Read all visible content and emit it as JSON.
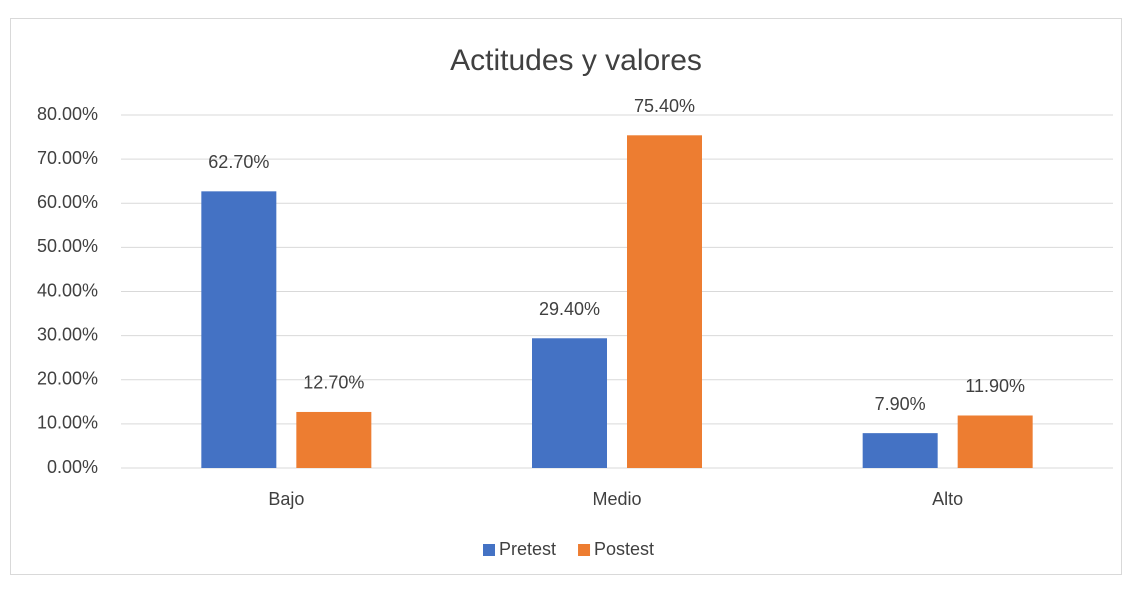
{
  "chart_data": {
    "type": "bar",
    "title": "Actitudes y valores",
    "categories": [
      "Bajo",
      "Medio",
      "Alto"
    ],
    "series": [
      {
        "name": "Pretest",
        "color": "#4472c4",
        "values": [
          62.7,
          29.4,
          7.9
        ],
        "value_labels": [
          "62.70%",
          "29.40%",
          "7.90%"
        ]
      },
      {
        "name": "Postest",
        "color": "#ed7d31",
        "values": [
          12.7,
          75.4,
          11.9
        ],
        "value_labels": [
          "12.70%",
          "75.40%",
          "11.90%"
        ]
      }
    ],
    "ylim": [
      0,
      80
    ],
    "yticks": [
      {
        "value": 0,
        "label": "0.00%"
      },
      {
        "value": 10,
        "label": "10.00%"
      },
      {
        "value": 20,
        "label": "20.00%"
      },
      {
        "value": 30,
        "label": "30.00%"
      },
      {
        "value": 40,
        "label": "40.00%"
      },
      {
        "value": 50,
        "label": "50.00%"
      },
      {
        "value": 60,
        "label": "60.00%"
      },
      {
        "value": 70,
        "label": "70.00%"
      },
      {
        "value": 80,
        "label": "80.00%"
      }
    ],
    "grid": true,
    "legend": "bottom"
  }
}
